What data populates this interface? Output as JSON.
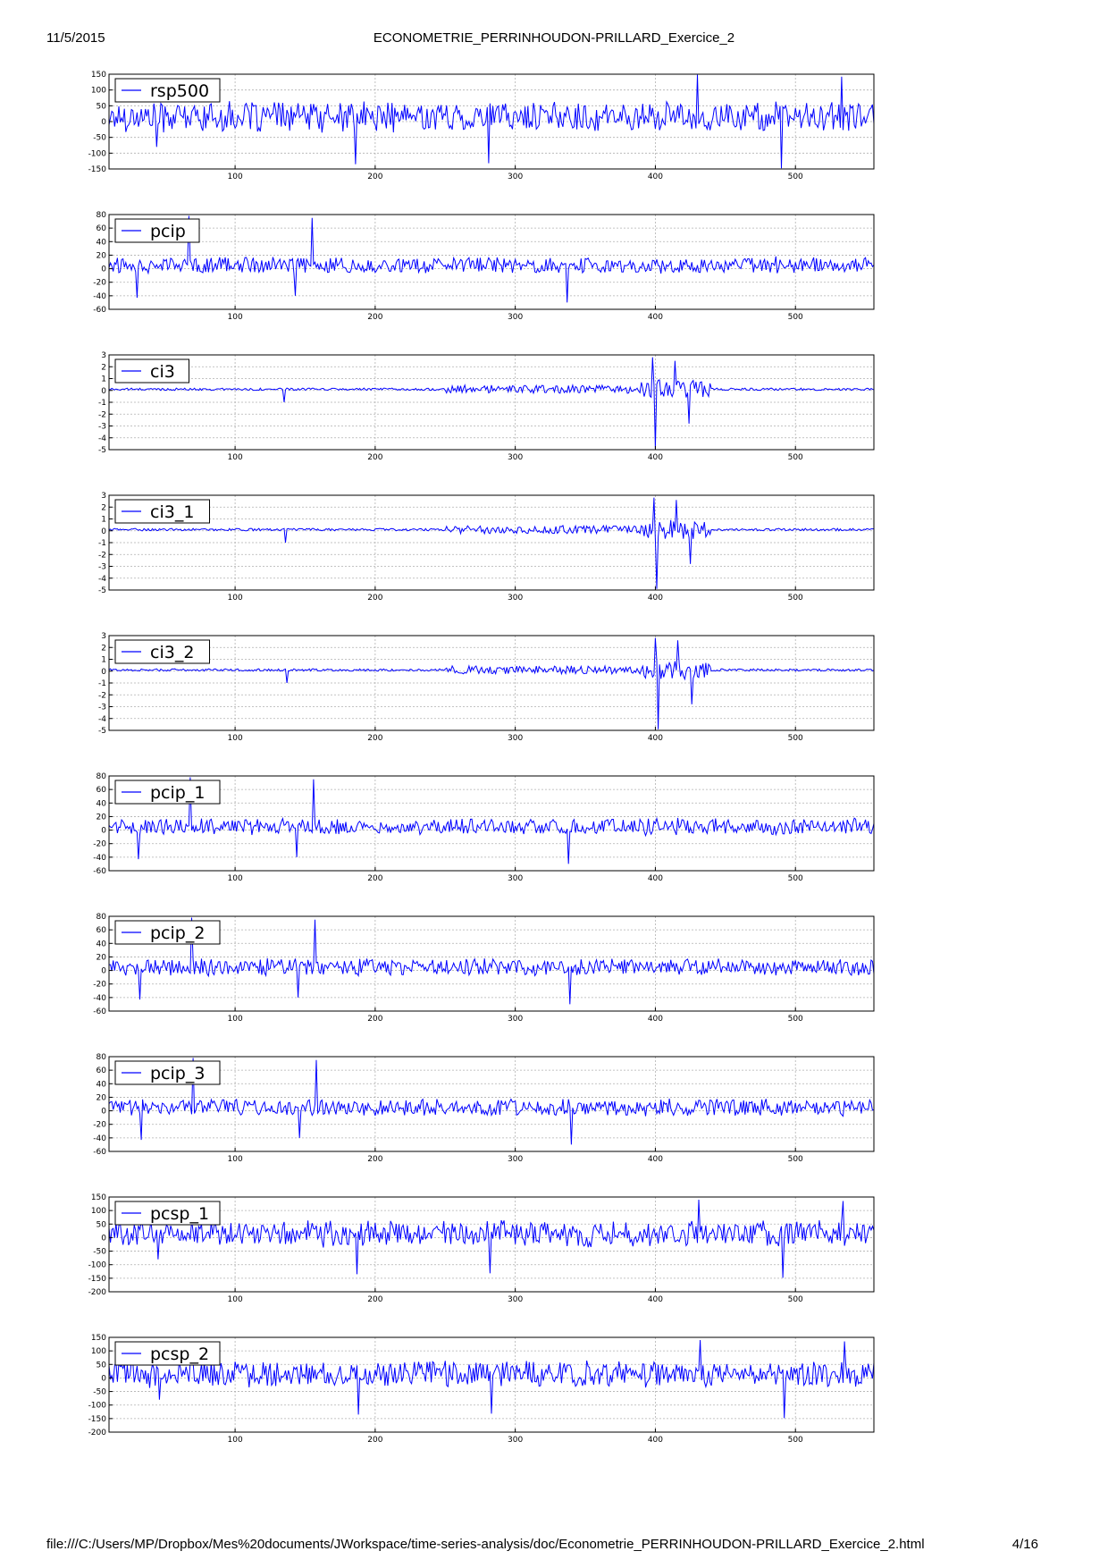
{
  "header": {
    "date": "11/5/2015",
    "title": "ECONOMETRIE_PERRINHOUDON-PRILLARD_Exercice_2"
  },
  "footer": {
    "url": "file:///C:/Users/MP/Dropbox/Mes%20documents/JWorkspace/time-series-analysis/doc/Econometrie_PERRINHOUDON-PRILLARD_Exercice_2.html",
    "page": "4/16"
  },
  "colors": {
    "line": "#0000ff",
    "grid": "#b0b0b0",
    "axes": "#000000"
  },
  "chart_data": [
    {
      "type": "line",
      "legend": "rsp500",
      "legend_placement": "upper-left",
      "grid": true,
      "xlim": [
        10,
        556
      ],
      "xticks": [
        100,
        200,
        300,
        400,
        500
      ],
      "ylim": [
        -150,
        150
      ],
      "yticks": [
        -150,
        -100,
        -50,
        0,
        50,
        100,
        150
      ],
      "style": "noisy",
      "base": 15,
      "amp": 35,
      "spikes": [
        [
          186,
          -135
        ],
        [
          281,
          -132
        ],
        [
          430,
          148
        ],
        [
          490,
          -148
        ],
        [
          533,
          142
        ],
        [
          44,
          -80
        ]
      ]
    },
    {
      "type": "line",
      "legend": "pcip",
      "legend_placement": "upper-left",
      "grid": true,
      "xlim": [
        10,
        556
      ],
      "xticks": [
        100,
        200,
        300,
        400,
        500
      ],
      "ylim": [
        -60,
        80
      ],
      "yticks": [
        -60,
        -40,
        -20,
        0,
        20,
        40,
        60,
        80
      ],
      "style": "noisy",
      "base": 5,
      "amp": 9,
      "spikes": [
        [
          67,
          78
        ],
        [
          155,
          75
        ],
        [
          30,
          -43
        ],
        [
          337,
          -50
        ],
        [
          143,
          -40
        ]
      ]
    },
    {
      "type": "line",
      "legend": "ci3",
      "legend_placement": "upper-left",
      "grid": true,
      "xlim": [
        10,
        556
      ],
      "xticks": [
        100,
        200,
        300,
        400,
        500
      ],
      "ylim": [
        -5,
        3
      ],
      "yticks": [
        -5,
        -4,
        -3,
        -2,
        -1,
        0,
        1,
        2,
        3
      ],
      "style": "ci",
      "base": 0.1,
      "amp": 0.1,
      "spikes": [
        [
          398,
          2.8
        ],
        [
          400,
          -4.9
        ],
        [
          414,
          2.5
        ],
        [
          424,
          -2.8
        ],
        [
          135,
          -1.0
        ]
      ]
    },
    {
      "type": "line",
      "legend": "ci3_1",
      "legend_placement": "upper-left",
      "grid": true,
      "xlim": [
        10,
        556
      ],
      "xticks": [
        100,
        200,
        300,
        400,
        500
      ],
      "ylim": [
        -5,
        3
      ],
      "yticks": [
        -5,
        -4,
        -3,
        -2,
        -1,
        0,
        1,
        2,
        3
      ],
      "style": "ci",
      "base": 0.1,
      "amp": 0.1,
      "spikes": [
        [
          399,
          2.8
        ],
        [
          401,
          -4.9
        ],
        [
          415,
          2.6
        ],
        [
          425,
          -2.8
        ],
        [
          136,
          -1.0
        ]
      ]
    },
    {
      "type": "line",
      "legend": "ci3_2",
      "legend_placement": "upper-left",
      "grid": true,
      "xlim": [
        10,
        556
      ],
      "xticks": [
        100,
        200,
        300,
        400,
        500
      ],
      "ylim": [
        -5,
        3
      ],
      "yticks": [
        -5,
        -4,
        -3,
        -2,
        -1,
        0,
        1,
        2,
        3
      ],
      "style": "ci",
      "base": 0.1,
      "amp": 0.1,
      "spikes": [
        [
          400,
          2.8
        ],
        [
          402,
          -4.9
        ],
        [
          416,
          2.6
        ],
        [
          426,
          -2.8
        ],
        [
          137,
          -1.0
        ]
      ]
    },
    {
      "type": "line",
      "legend": "pcip_1",
      "legend_placement": "upper-left",
      "grid": true,
      "xlim": [
        10,
        556
      ],
      "xticks": [
        100,
        200,
        300,
        400,
        500
      ],
      "ylim": [
        -60,
        80
      ],
      "yticks": [
        -60,
        -40,
        -20,
        0,
        20,
        40,
        60,
        80
      ],
      "style": "noisy",
      "base": 5,
      "amp": 9,
      "spikes": [
        [
          68,
          78
        ],
        [
          156,
          75
        ],
        [
          31,
          -43
        ],
        [
          338,
          -50
        ],
        [
          144,
          -40
        ]
      ]
    },
    {
      "type": "line",
      "legend": "pcip_2",
      "legend_placement": "upper-left",
      "grid": true,
      "xlim": [
        10,
        556
      ],
      "xticks": [
        100,
        200,
        300,
        400,
        500
      ],
      "ylim": [
        -60,
        80
      ],
      "yticks": [
        -60,
        -40,
        -20,
        0,
        20,
        40,
        60,
        80
      ],
      "style": "noisy",
      "base": 5,
      "amp": 9,
      "spikes": [
        [
          69,
          78
        ],
        [
          157,
          75
        ],
        [
          32,
          -43
        ],
        [
          339,
          -50
        ],
        [
          145,
          -40
        ]
      ]
    },
    {
      "type": "line",
      "legend": "pcip_3",
      "legend_placement": "upper-left",
      "grid": true,
      "xlim": [
        10,
        556
      ],
      "xticks": [
        100,
        200,
        300,
        400,
        500
      ],
      "ylim": [
        -60,
        80
      ],
      "yticks": [
        -60,
        -40,
        -20,
        0,
        20,
        40,
        60,
        80
      ],
      "style": "noisy",
      "base": 5,
      "amp": 9,
      "spikes": [
        [
          70,
          78
        ],
        [
          158,
          75
        ],
        [
          33,
          -43
        ],
        [
          340,
          -50
        ],
        [
          146,
          -40
        ]
      ]
    },
    {
      "type": "line",
      "legend": "pcsp_1",
      "legend_placement": "upper-left",
      "grid": true,
      "xlim": [
        10,
        556
      ],
      "xticks": [
        100,
        200,
        300,
        400,
        500
      ],
      "ylim": [
        -200,
        150
      ],
      "yticks": [
        -200,
        -150,
        -100,
        -50,
        0,
        50,
        100,
        150
      ],
      "style": "noisy",
      "base": 15,
      "amp": 35,
      "spikes": [
        [
          187,
          -135
        ],
        [
          282,
          -132
        ],
        [
          431,
          140
        ],
        [
          491,
          -148
        ],
        [
          534,
          135
        ],
        [
          45,
          -80
        ]
      ]
    },
    {
      "type": "line",
      "legend": "pcsp_2",
      "legend_placement": "upper-left",
      "grid": true,
      "xlim": [
        10,
        556
      ],
      "xticks": [
        100,
        200,
        300,
        400,
        500
      ],
      "ylim": [
        -200,
        150
      ],
      "yticks": [
        -200,
        -150,
        -100,
        -50,
        0,
        50,
        100,
        150
      ],
      "style": "noisy",
      "base": 15,
      "amp": 35,
      "spikes": [
        [
          188,
          -135
        ],
        [
          283,
          -132
        ],
        [
          432,
          140
        ],
        [
          492,
          -148
        ],
        [
          535,
          135
        ],
        [
          46,
          -80
        ]
      ]
    }
  ]
}
